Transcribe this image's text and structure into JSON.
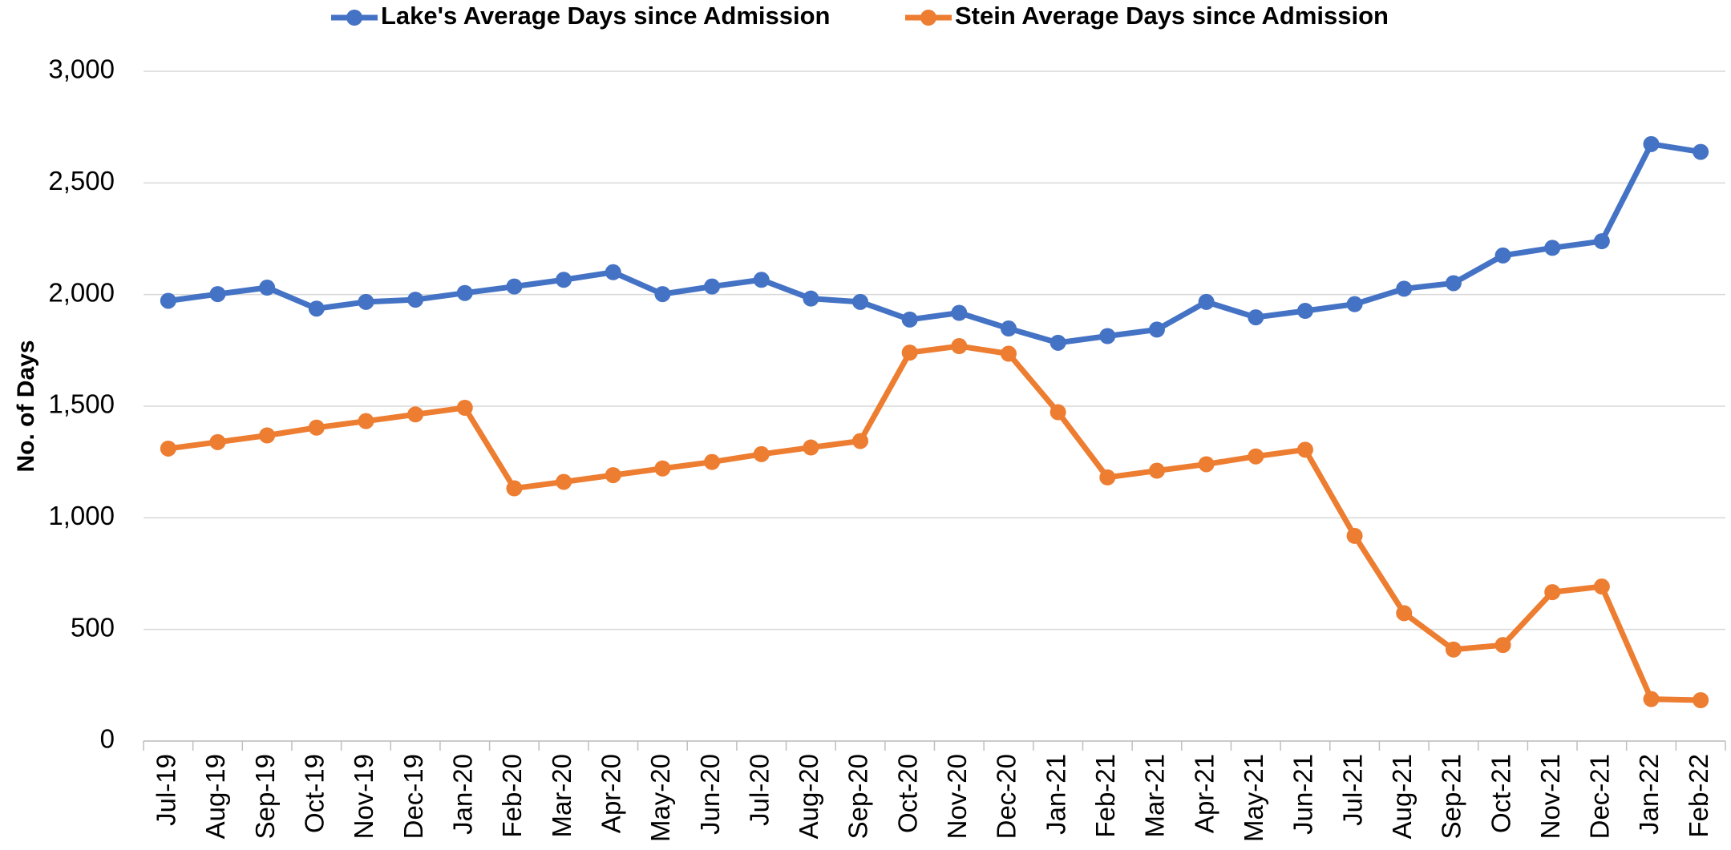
{
  "chart_data": {
    "type": "line",
    "y_label": "No. of Days",
    "categories": [
      "Jul-19",
      "Aug-19",
      "Sep-19",
      "Oct-19",
      "Nov-19",
      "Dec-19",
      "Jan-20",
      "Feb-20",
      "Mar-20",
      "Apr-20",
      "May-20",
      "Jun-20",
      "Jul-20",
      "Aug-20",
      "Sep-20",
      "Oct-20",
      "Nov-20",
      "Dec-20",
      "Jan-21",
      "Feb-21",
      "Mar-21",
      "Apr-21",
      "May-21",
      "Jun-21",
      "Jul-21",
      "Aug-21",
      "Sep-21",
      "Oct-21",
      "Nov-21",
      "Dec-21",
      "Jan-22",
      "Feb-22"
    ],
    "series": [
      {
        "name": "Lake's Average Days since Admission",
        "color": "#4472c4",
        "values": [
          1972,
          2002,
          2031,
          1937,
          1967,
          1977,
          2007,
          2036,
          2066,
          2100,
          2002,
          2036,
          2066,
          1982,
          1967,
          1888,
          1918,
          1848,
          1784,
          1814,
          1843,
          1967,
          1898,
          1927,
          1957,
          2026,
          2051,
          2175,
          2209,
          2239,
          2674,
          2639
        ]
      },
      {
        "name": "Stein Average Days since Admission",
        "color": "#ed7d31",
        "values": [
          1310,
          1339,
          1369,
          1404,
          1433,
          1463,
          1493,
          1132,
          1161,
          1191,
          1221,
          1250,
          1285,
          1315,
          1344,
          1740,
          1769,
          1735,
          1473,
          1181,
          1211,
          1240,
          1275,
          1305,
          919,
          573,
          410,
          430,
          667,
          692,
          188,
          183
        ]
      }
    ],
    "ylim": [
      0,
      3000
    ],
    "yticks": [
      0,
      500,
      {
        "value": 1000,
        "label": "1,000"
      },
      {
        "value": 1500,
        "label": "1,500"
      },
      {
        "value": 2000,
        "label": "2,000"
      },
      {
        "value": 2500,
        "label": "2,500"
      },
      {
        "value": 3000,
        "label": "3,000"
      }
    ],
    "grid": true,
    "legend": "top"
  }
}
